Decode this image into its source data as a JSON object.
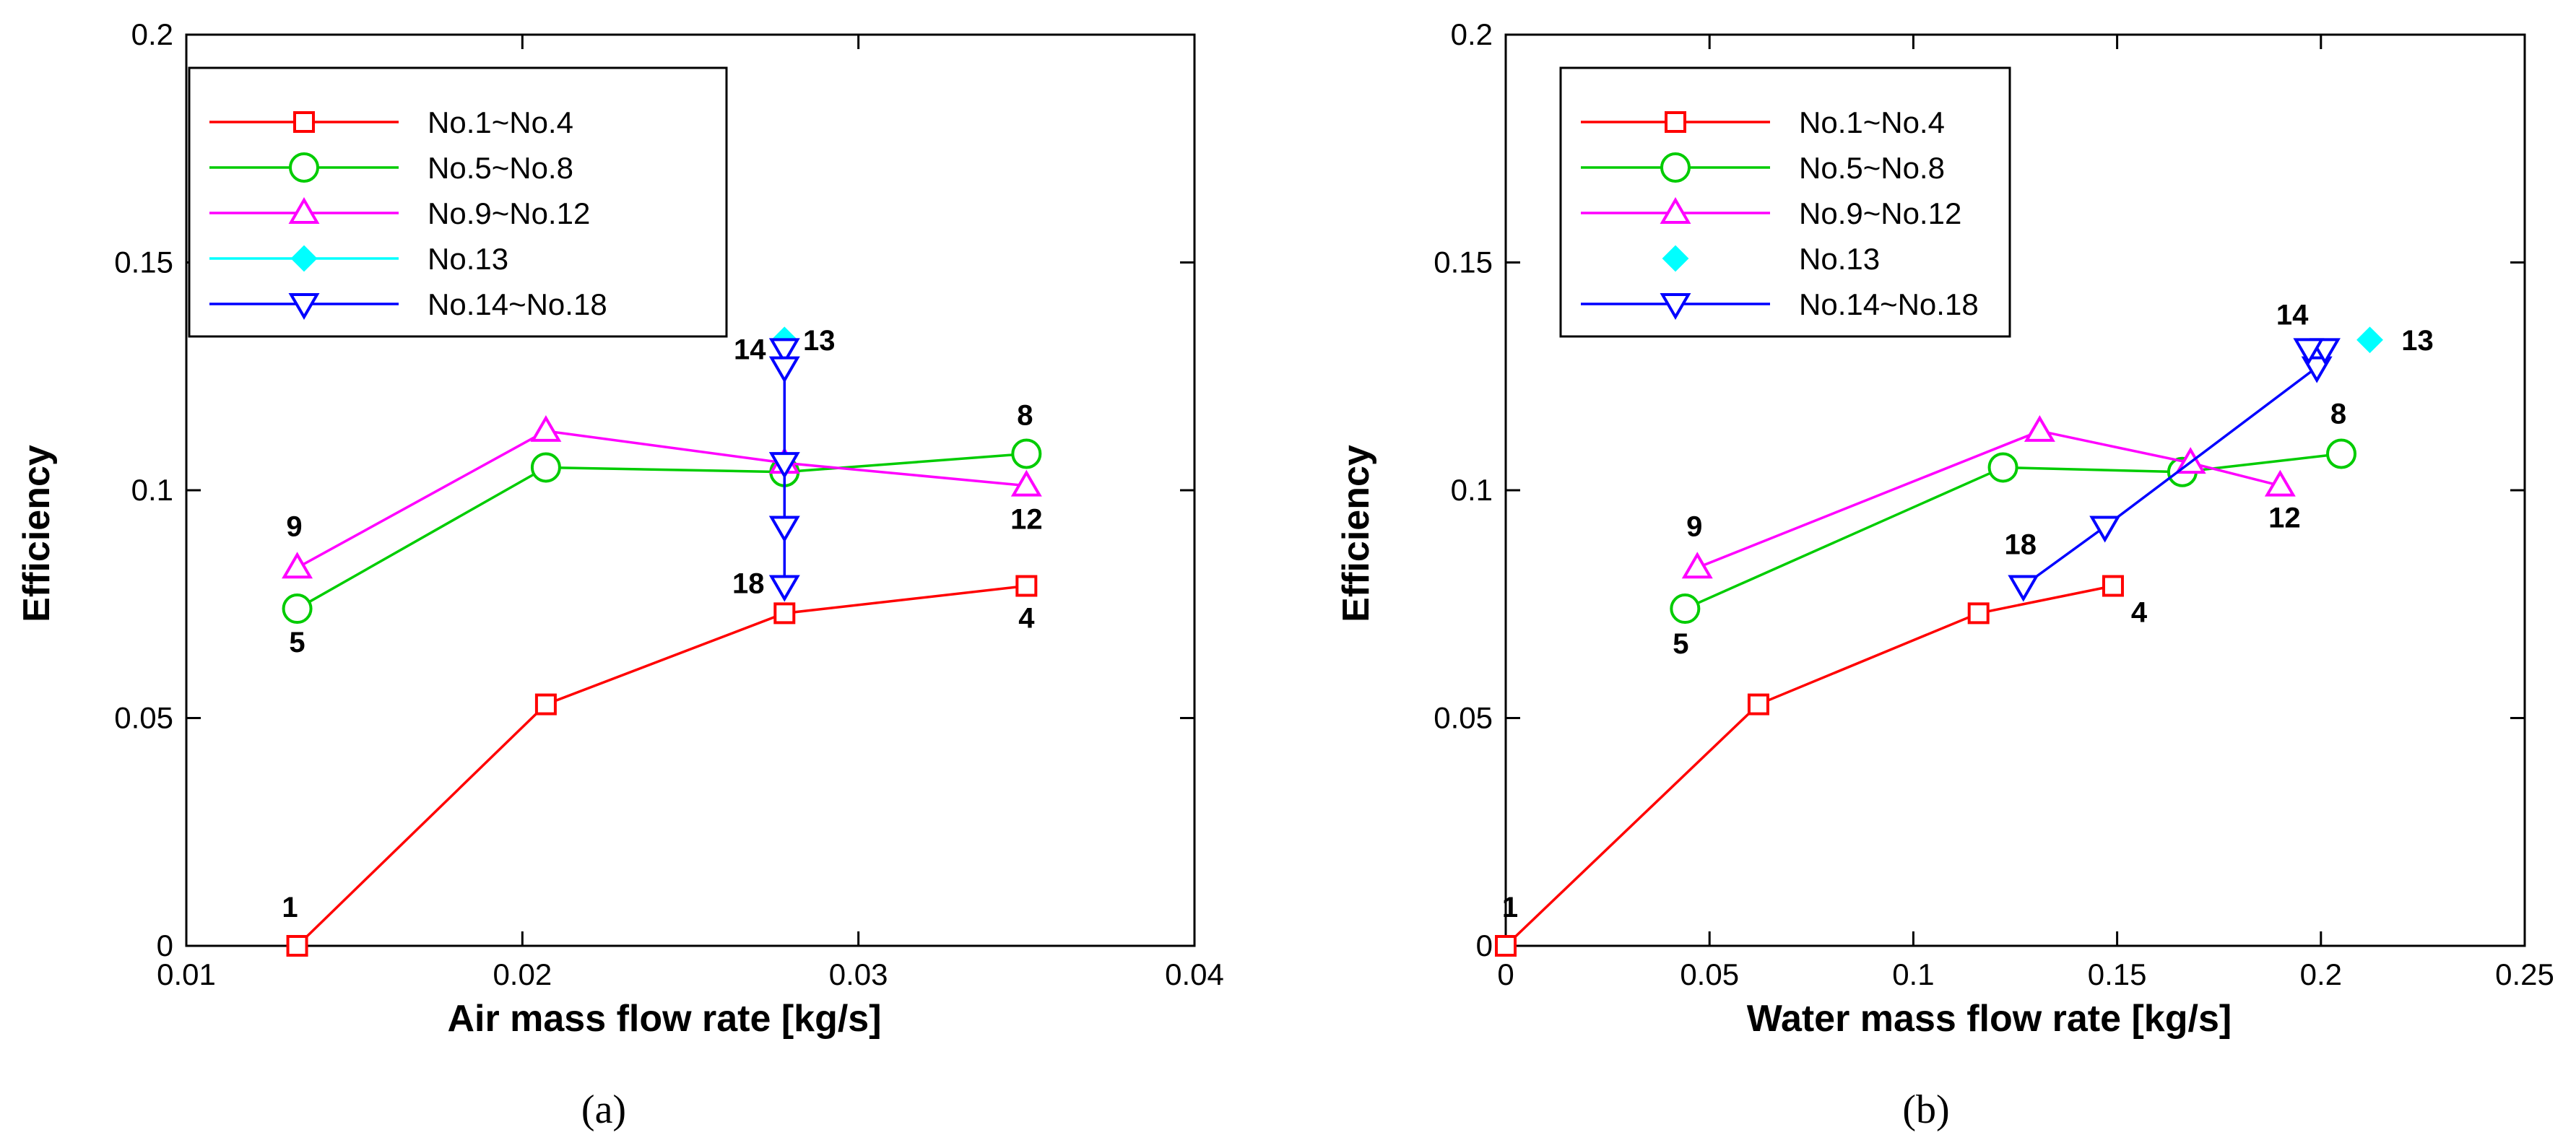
{
  "chart_data": [
    {
      "type": "line",
      "panel_label": "(a)",
      "xlabel": "Air mass flow rate [kg/s]",
      "ylabel": "Efficiency",
      "xlim": [
        0.01,
        0.04
      ],
      "ylim": [
        0,
        0.2
      ],
      "x_ticks": [
        0.01,
        0.02,
        0.03,
        0.04
      ],
      "x_tick_labels": [
        "0.01",
        "0.02",
        "0.03",
        "0.04"
      ],
      "y_ticks": [
        0,
        0.05,
        0.1,
        0.15,
        0.2
      ],
      "y_tick_labels": [
        "0",
        "0.05",
        "0.1",
        "0.15",
        "0.2"
      ],
      "legend_position": "top-left",
      "series": [
        {
          "name": "No.1~No.4",
          "color": "#ff0000",
          "marker": "square",
          "line": true,
          "x": [
            0.0133,
            0.0207,
            0.0278,
            0.035
          ],
          "y": [
            0.0,
            0.053,
            0.073,
            0.079
          ]
        },
        {
          "name": "No.5~No.8",
          "color": "#00cc00",
          "marker": "circle",
          "line": true,
          "x": [
            0.0133,
            0.0207,
            0.0278,
            0.035
          ],
          "y": [
            0.074,
            0.105,
            0.104,
            0.108
          ]
        },
        {
          "name": "No.9~No.12",
          "color": "#ff00ff",
          "marker": "triangle-up",
          "line": true,
          "x": [
            0.0133,
            0.0207,
            0.0278,
            0.035
          ],
          "y": [
            0.083,
            0.113,
            0.106,
            0.101
          ]
        },
        {
          "name": "No.13",
          "color": "#00ffff",
          "marker": "diamond-filled",
          "line": true,
          "x": [
            0.0278
          ],
          "y": [
            0.133
          ]
        },
        {
          "name": "No.14~No.18",
          "color": "#0000ff",
          "marker": "triangle-down",
          "line": true,
          "x": [
            0.0278,
            0.0278,
            0.0278,
            0.0278,
            0.0278
          ],
          "y": [
            0.131,
            0.127,
            0.106,
            0.092,
            0.079
          ]
        }
      ],
      "annotations": [
        {
          "text": "1",
          "x": 0.0133,
          "y": 0.0,
          "dx": -10,
          "dy": -40
        },
        {
          "text": "4",
          "x": 0.035,
          "y": 0.079,
          "dx": 0,
          "dy": 58
        },
        {
          "text": "5",
          "x": 0.0133,
          "y": 0.074,
          "dx": 0,
          "dy": 60
        },
        {
          "text": "8",
          "x": 0.035,
          "y": 0.108,
          "dx": -2,
          "dy": -40
        },
        {
          "text": "9",
          "x": 0.0133,
          "y": 0.083,
          "dx": -4,
          "dy": -44
        },
        {
          "text": "12",
          "x": 0.035,
          "y": 0.101,
          "dx": 0,
          "dy": 60
        },
        {
          "text": "13",
          "x": 0.0278,
          "y": 0.133,
          "dx": 48,
          "dy": 14
        },
        {
          "text": "14",
          "x": 0.0278,
          "y": 0.131,
          "dx": -48,
          "dy": 14
        },
        {
          "text": "18",
          "x": 0.0278,
          "y": 0.079,
          "dx": -50,
          "dy": 10
        }
      ]
    },
    {
      "type": "line",
      "panel_label": "(b)",
      "xlabel": "Water mass flow rate [kg/s]",
      "ylabel": "Efficiency",
      "xlim": [
        0,
        0.25
      ],
      "ylim": [
        0,
        0.2
      ],
      "x_ticks": [
        0,
        0.05,
        0.1,
        0.15,
        0.2,
        0.25
      ],
      "x_tick_labels": [
        "0",
        "0.05",
        "0.1",
        "0.15",
        "0.2",
        "0.25"
      ],
      "y_ticks": [
        0,
        0.05,
        0.1,
        0.15,
        0.2
      ],
      "y_tick_labels": [
        "0",
        "0.05",
        "0.1",
        "0.15",
        "0.2"
      ],
      "legend_position": "top-left",
      "series": [
        {
          "name": "No.1~No.4",
          "color": "#ff0000",
          "marker": "square",
          "line": true,
          "x": [
            0.0,
            0.062,
            0.116,
            0.149
          ],
          "y": [
            0.0,
            0.053,
            0.073,
            0.079
          ]
        },
        {
          "name": "No.5~No.8",
          "color": "#00cc00",
          "marker": "circle",
          "line": true,
          "x": [
            0.044,
            0.122,
            0.166,
            0.205
          ],
          "y": [
            0.074,
            0.105,
            0.104,
            0.108
          ]
        },
        {
          "name": "No.9~No.12",
          "color": "#ff00ff",
          "marker": "triangle-up",
          "line": true,
          "x": [
            0.047,
            0.131,
            0.168,
            0.19
          ],
          "y": [
            0.083,
            0.113,
            0.106,
            0.101
          ]
        },
        {
          "name": "No.13",
          "color": "#00ffff",
          "marker": "diamond-filled",
          "line": false,
          "x": [
            0.212
          ],
          "y": [
            0.133
          ]
        },
        {
          "name": "No.14~No.18",
          "color": "#0000ff",
          "marker": "triangle-down",
          "line": true,
          "x": [
            0.127,
            0.147,
            0.199,
            0.201,
            0.197
          ],
          "y": [
            0.079,
            0.092,
            0.127,
            0.131,
            0.131
          ]
        }
      ],
      "annotations": [
        {
          "text": "1",
          "x": 0.0,
          "y": 0.0,
          "dx": 6,
          "dy": -40
        },
        {
          "text": "4",
          "x": 0.149,
          "y": 0.079,
          "dx": 36,
          "dy": 50
        },
        {
          "text": "5",
          "x": 0.044,
          "y": 0.074,
          "dx": -6,
          "dy": 62
        },
        {
          "text": "8",
          "x": 0.205,
          "y": 0.108,
          "dx": -4,
          "dy": -42
        },
        {
          "text": "9",
          "x": 0.047,
          "y": 0.083,
          "dx": -4,
          "dy": -44
        },
        {
          "text": "12",
          "x": 0.19,
          "y": 0.101,
          "dx": 6,
          "dy": 58
        },
        {
          "text": "13",
          "x": 0.212,
          "y": 0.133,
          "dx": 66,
          "dy": 14
        },
        {
          "text": "14",
          "x": 0.199,
          "y": 0.131,
          "dx": -34,
          "dy": -34
        },
        {
          "text": "18",
          "x": 0.127,
          "y": 0.079,
          "dx": -4,
          "dy": -44
        }
      ]
    }
  ]
}
